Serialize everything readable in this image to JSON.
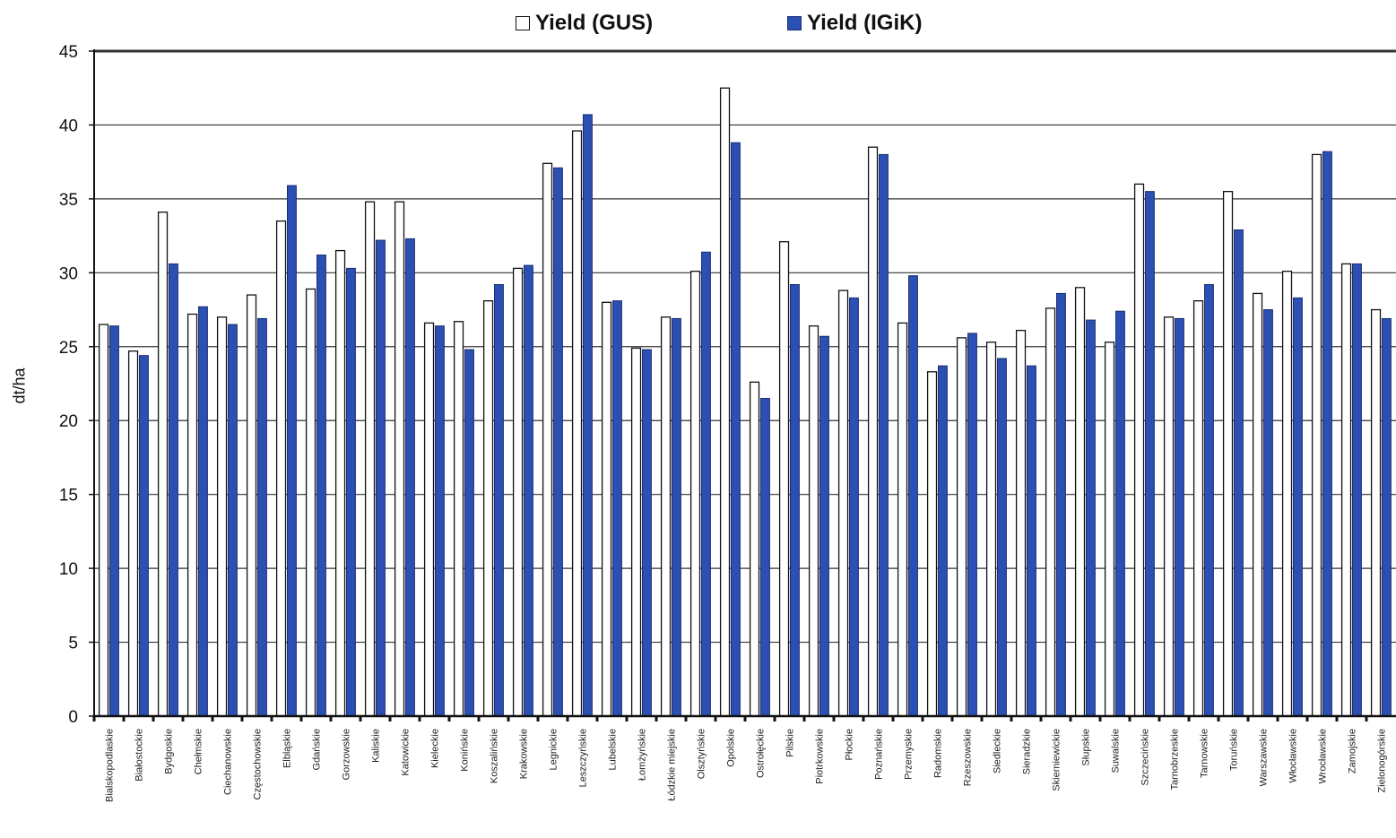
{
  "chart_data": {
    "type": "bar",
    "title": "",
    "xlabel": "",
    "ylabel": "dt/ha",
    "ylim": [
      0,
      45
    ],
    "yticks": [
      0,
      5,
      10,
      15,
      20,
      25,
      30,
      35,
      40,
      45
    ],
    "grid": true,
    "legend_position": "top",
    "categories": [
      "Bialskopodlaskie",
      "Białostockie",
      "Bydgoskie",
      "Chełmskie",
      "Ciechanowskie",
      "Częstochowskie",
      "Elbląskie",
      "Gdańskie",
      "Gorzowskie",
      "Kaliskie",
      "Katowickie",
      "Kieleckie",
      "Konińskie",
      "Koszalińskie",
      "Krakowskie",
      "Legnickie",
      "Leszczyńskie",
      "Lubelskie",
      "Łomżyńskie",
      "Łódzkie miejskie",
      "Olsztyńskie",
      "Opolskie",
      "Ostrołęckie",
      "Pilskie",
      "Piotrkowskie",
      "Płockie",
      "Poznańskie",
      "Przemyskie",
      "Radomskie",
      "Rzeszowskie",
      "Siedleckie",
      "Sieradzkie",
      "Skierniewickie",
      "Słupskie",
      "Suwalskie",
      "Szczecińskie",
      "Tarnobrzeskie",
      "Tarnowskie",
      "Toruńskie",
      "Warszawskie",
      "Włocławskie",
      "Wrocławskie",
      "Zamojskie",
      "Zielonogórskie"
    ],
    "series": [
      {
        "name": "Yield (GUS)",
        "color": "#ffffff",
        "values": [
          26.5,
          24.7,
          34.1,
          27.2,
          27.0,
          28.5,
          33.5,
          28.9,
          31.5,
          34.8,
          34.8,
          26.6,
          26.7,
          28.1,
          30.3,
          37.4,
          39.6,
          28.0,
          24.9,
          27.0,
          30.1,
          42.5,
          22.6,
          32.1,
          26.4,
          28.8,
          38.5,
          26.6,
          23.3,
          25.6,
          25.3,
          26.1,
          27.6,
          29.0,
          25.3,
          36.0,
          27.0,
          28.1,
          35.5,
          28.6,
          30.1,
          38.0,
          30.6,
          27.5
        ]
      },
      {
        "name": "Yield (IGiK)",
        "color": "#2b4fb3",
        "values": [
          26.4,
          24.4,
          30.6,
          27.7,
          26.5,
          26.9,
          35.9,
          31.2,
          30.3,
          32.2,
          32.3,
          26.4,
          24.8,
          29.2,
          30.5,
          37.1,
          40.7,
          28.1,
          24.8,
          26.9,
          31.4,
          38.8,
          21.5,
          29.2,
          25.7,
          28.3,
          38.0,
          29.8,
          23.7,
          25.9,
          24.2,
          23.7,
          28.6,
          26.8,
          27.4,
          35.5,
          26.9,
          29.2,
          32.9,
          27.5,
          28.3,
          38.2,
          30.6,
          26.9
        ]
      }
    ]
  }
}
